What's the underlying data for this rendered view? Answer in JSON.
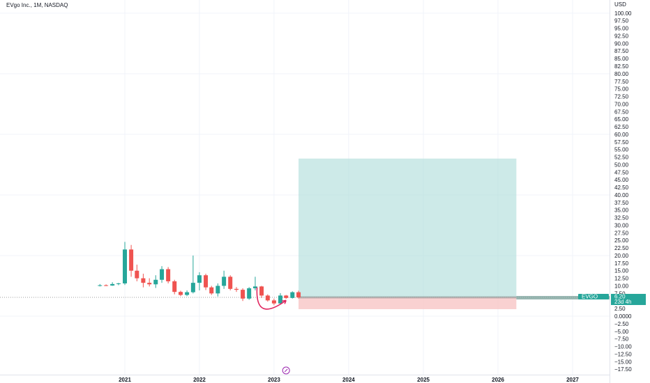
{
  "header": {
    "title": "EVgo Inc., 1M, NASDAQ"
  },
  "colors": {
    "up": "#26a69a",
    "down": "#ef5350",
    "profit_zone": "#b2dfdb",
    "loss_zone": "#f8c5c5",
    "grid": "#f0f3fa",
    "arrow": "#e0245e",
    "price_line": "#9e9e9e"
  },
  "chart_data": {
    "type": "candlestick",
    "symbol": "EVgo Inc.",
    "interval": "1M",
    "exchange": "NASDAQ",
    "currency": "USD",
    "y_ticks": [
      100,
      97.5,
      95,
      92.5,
      90,
      87.5,
      85,
      82.5,
      80,
      77.5,
      75,
      72.5,
      70,
      67.5,
      65,
      62.5,
      60,
      57.5,
      55,
      52.5,
      50,
      47.5,
      45,
      42.5,
      40,
      37.5,
      35,
      32.5,
      30,
      27.5,
      25,
      22.5,
      20,
      17.5,
      15,
      12.5,
      10,
      7.5,
      5,
      2.5,
      0,
      -2.5,
      -5,
      -7.5,
      -10,
      -12.5,
      -15,
      -17.5
    ],
    "y_tick_labels": [
      "100.00",
      "97.50",
      "95.00",
      "92.50",
      "90.00",
      "87.50",
      "85.00",
      "82.50",
      "80.00",
      "77.50",
      "75.00",
      "72.50",
      "70.00",
      "67.50",
      "65.00",
      "62.50",
      "60.00",
      "57.50",
      "55.00",
      "52.50",
      "50.00",
      "47.50",
      "45.00",
      "42.50",
      "40.00",
      "37.50",
      "35.00",
      "32.50",
      "30.00",
      "27.50",
      "25.00",
      "22.50",
      "20.00",
      "17.50",
      "15.00",
      "12.50",
      "10.00",
      "7.50",
      "",
      "2.50",
      "0.0000",
      "−2.50",
      "−5.00",
      "−7.50",
      "−10.00",
      "−12.50",
      "−15.00",
      "−17.50"
    ],
    "x_ticks": [
      "2021",
      "2022",
      "2023",
      "2024",
      "2025",
      "2026",
      "2027"
    ],
    "x_tick_dates": [
      "2021-01-01",
      "2022-01-01",
      "2023-01-01",
      "2024-01-01",
      "2025-01-01",
      "2026-01-01",
      "2027-01-01"
    ],
    "x_range": [
      "2019-05-01",
      "2027-07-01"
    ],
    "ylim": [
      -18.5,
      101
    ],
    "last_price": 6.2,
    "last_price_label": "6.20",
    "countdown": "23d 4h",
    "ticker_label": "EVGO",
    "candles": [
      {
        "date": "2020-09-01",
        "o": 10.0,
        "h": 10.6,
        "l": 9.8,
        "c": 10.2
      },
      {
        "date": "2020-10-01",
        "o": 10.2,
        "h": 10.5,
        "l": 9.9,
        "c": 10.1
      },
      {
        "date": "2020-11-01",
        "o": 10.1,
        "h": 11.2,
        "l": 10.0,
        "c": 10.6
      },
      {
        "date": "2020-12-01",
        "o": 10.6,
        "h": 11.0,
        "l": 10.2,
        "c": 10.8
      },
      {
        "date": "2021-01-01",
        "o": 10.8,
        "h": 24.5,
        "l": 10.3,
        "c": 22.0
      },
      {
        "date": "2021-02-01",
        "o": 22.0,
        "h": 23.5,
        "l": 13.0,
        "c": 15.0
      },
      {
        "date": "2021-03-01",
        "o": 15.0,
        "h": 17.0,
        "l": 11.5,
        "c": 12.5
      },
      {
        "date": "2021-04-01",
        "o": 12.5,
        "h": 14.0,
        "l": 9.5,
        "c": 11.0
      },
      {
        "date": "2021-05-01",
        "o": 11.0,
        "h": 12.5,
        "l": 9.8,
        "c": 10.5
      },
      {
        "date": "2021-06-01",
        "o": 10.5,
        "h": 13.5,
        "l": 9.3,
        "c": 12.0
      },
      {
        "date": "2021-07-01",
        "o": 12.0,
        "h": 16.5,
        "l": 11.0,
        "c": 15.5
      },
      {
        "date": "2021-08-01",
        "o": 15.5,
        "h": 16.2,
        "l": 10.8,
        "c": 11.5
      },
      {
        "date": "2021-09-01",
        "o": 11.5,
        "h": 12.0,
        "l": 7.2,
        "c": 8.0
      },
      {
        "date": "2021-10-01",
        "o": 8.0,
        "h": 8.4,
        "l": 6.6,
        "c": 7.0
      },
      {
        "date": "2021-11-01",
        "o": 7.0,
        "h": 8.5,
        "l": 6.6,
        "c": 7.9
      },
      {
        "date": "2021-12-01",
        "o": 7.9,
        "h": 20.0,
        "l": 7.5,
        "c": 11.0
      },
      {
        "date": "2022-01-01",
        "o": 11.0,
        "h": 14.5,
        "l": 8.5,
        "c": 13.5
      },
      {
        "date": "2022-02-01",
        "o": 13.5,
        "h": 14.0,
        "l": 8.6,
        "c": 9.5
      },
      {
        "date": "2022-03-01",
        "o": 9.5,
        "h": 10.0,
        "l": 7.0,
        "c": 7.5
      },
      {
        "date": "2022-04-01",
        "o": 7.5,
        "h": 10.8,
        "l": 6.5,
        "c": 10.0
      },
      {
        "date": "2022-05-01",
        "o": 10.0,
        "h": 15.0,
        "l": 9.0,
        "c": 13.0
      },
      {
        "date": "2022-06-01",
        "o": 13.0,
        "h": 13.5,
        "l": 8.5,
        "c": 9.0
      },
      {
        "date": "2022-07-01",
        "o": 9.0,
        "h": 9.6,
        "l": 8.0,
        "c": 8.7
      },
      {
        "date": "2022-08-01",
        "o": 8.7,
        "h": 9.2,
        "l": 5.0,
        "c": 5.8
      },
      {
        "date": "2022-09-01",
        "o": 5.8,
        "h": 9.6,
        "l": 5.4,
        "c": 9.2
      },
      {
        "date": "2022-10-01",
        "o": 9.2,
        "h": 13.0,
        "l": 8.5,
        "c": 9.8
      },
      {
        "date": "2022-11-01",
        "o": 9.8,
        "h": 10.0,
        "l": 6.0,
        "c": 6.8
      },
      {
        "date": "2022-12-01",
        "o": 6.8,
        "h": 7.2,
        "l": 4.8,
        "c": 5.2
      },
      {
        "date": "2023-01-01",
        "o": 5.2,
        "h": 5.8,
        "l": 3.6,
        "c": 4.2
      },
      {
        "date": "2023-02-01",
        "o": 4.2,
        "h": 7.6,
        "l": 4.0,
        "c": 6.8
      },
      {
        "date": "2023-03-01",
        "o": 6.8,
        "h": 7.0,
        "l": 5.7,
        "c": 6.0
      },
      {
        "date": "2023-04-01",
        "o": 6.0,
        "h": 8.2,
        "l": 5.8,
        "c": 7.9
      },
      {
        "date": "2023-05-01",
        "o": 7.9,
        "h": 8.4,
        "l": 5.8,
        "c": 6.2
      }
    ],
    "position": {
      "type": "long",
      "start": "2023-05-01",
      "end": "2026-04-01",
      "entry": 6.2,
      "target": 52.0,
      "stop": 2.3
    },
    "arrow": {
      "from": {
        "date": "2022-10-10",
        "value": 9.5
      },
      "mid": {
        "date": "2023-01-10",
        "value": 3.5
      },
      "to": {
        "date": "2023-03-01",
        "value": 5.2
      }
    },
    "grid": true
  }
}
